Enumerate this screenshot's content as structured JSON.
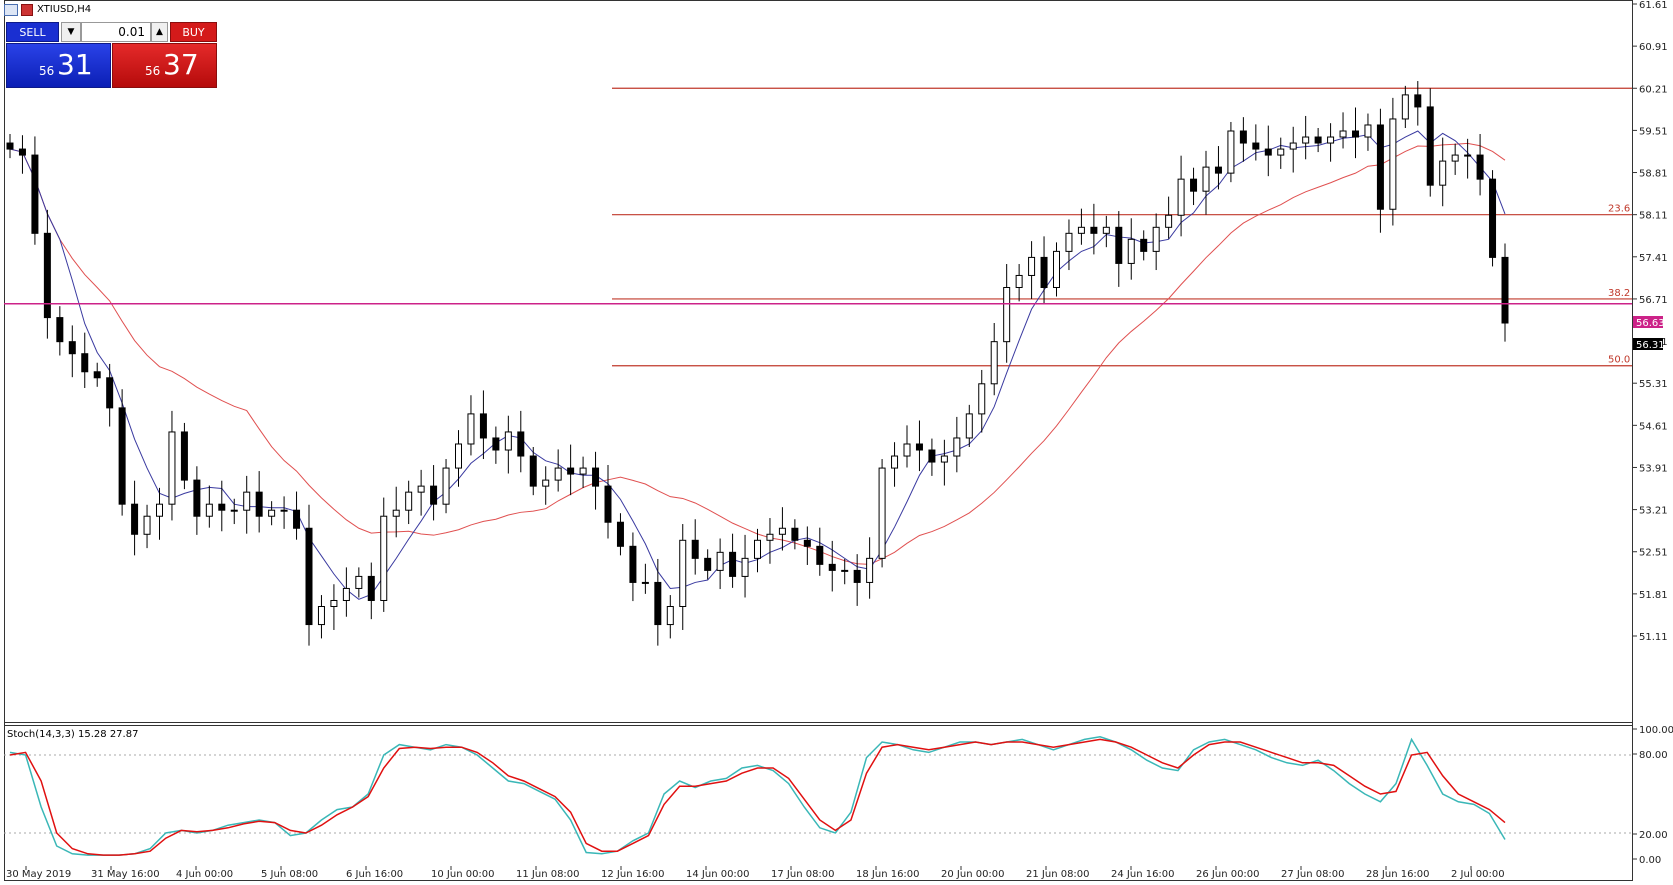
{
  "symbol_title": "XTIUSD,H4",
  "trade_panel": {
    "sell_label": "SELL",
    "buy_label": "BUY",
    "lot_value": "0.01",
    "sell_price_small": "56",
    "sell_price_big": "31",
    "buy_price_small": "56",
    "buy_price_big": "37"
  },
  "indicator_label": "Stoch(14,3,3) 15.28 27.87",
  "current_price_label": "56.31",
  "hline_price_label": "56.63",
  "colors": {
    "sell": "#1a2fd1",
    "buy": "#d41a1a",
    "ma_fast": "#3a3aa0",
    "ma_slow": "#e05050",
    "hline": "#cc2288",
    "fib": "#c0392b",
    "stoch_main": "#3ab7b7",
    "stoch_signal": "#e01010"
  },
  "chart_data": {
    "type": "candlestick",
    "title": "",
    "y_axis_ticks": [
      "61.61",
      "60.91",
      "60.21",
      "59.51",
      "58.81",
      "58.11",
      "57.41",
      "56.71",
      "56.01",
      "55.31",
      "54.61",
      "53.91",
      "53.21",
      "52.51",
      "51.81",
      "51.11"
    ],
    "ylim": [
      50.5,
      61.61
    ],
    "x_axis_ticks": [
      "30 May 2019",
      "31 May 16:00",
      "4 Jun 00:00",
      "5 Jun 08:00",
      "6 Jun 16:00",
      "10 Jun 00:00",
      "11 Jun 08:00",
      "12 Jun 16:00",
      "14 Jun 00:00",
      "17 Jun 08:00",
      "18 Jun 16:00",
      "20 Jun 00:00",
      "21 Jun 08:00",
      "24 Jun 16:00",
      "26 Jun 00:00",
      "27 Jun 08:00",
      "28 Jun 16:00",
      "2 Jul 00:00"
    ],
    "fib_levels": [
      {
        "label": "",
        "price": 60.21
      },
      {
        "label": "23.6",
        "price": 58.11
      },
      {
        "label": "38.2",
        "price": 56.71
      },
      {
        "label": "50.0",
        "price": 55.6
      }
    ],
    "hline": 56.63,
    "current_price": 56.31,
    "closes": [
      59.2,
      59.1,
      57.8,
      56.4,
      56.0,
      55.8,
      55.5,
      55.4,
      54.9,
      53.3,
      52.8,
      53.1,
      53.3,
      54.5,
      53.7,
      53.1,
      53.3,
      53.2,
      53.2,
      53.5,
      53.1,
      53.2,
      53.2,
      52.9,
      51.3,
      51.6,
      51.7,
      51.9,
      52.1,
      51.7,
      53.1,
      53.2,
      53.5,
      53.6,
      53.3,
      53.9,
      54.3,
      54.8,
      54.4,
      54.2,
      54.5,
      54.1,
      53.6,
      53.7,
      53.9,
      53.8,
      53.9,
      53.6,
      53.0,
      52.6,
      52.0,
      52.0,
      51.3,
      51.6,
      52.7,
      52.4,
      52.2,
      52.5,
      52.1,
      52.4,
      52.7,
      52.8,
      52.9,
      52.7,
      52.6,
      52.3,
      52.2,
      52.2,
      52.0,
      52.4,
      53.9,
      54.1,
      54.3,
      54.2,
      54.0,
      54.1,
      54.4,
      54.8,
      55.3,
      56.0,
      56.9,
      57.1,
      57.4,
      56.9,
      57.5,
      57.8,
      57.9,
      57.8,
      57.9,
      57.3,
      57.7,
      57.5,
      57.9,
      58.1,
      58.7,
      58.5,
      58.9,
      58.8,
      59.5,
      59.3,
      59.2,
      59.1,
      59.2,
      59.3,
      59.4,
      59.3,
      59.4,
      59.5,
      59.4,
      59.6,
      58.2,
      59.7,
      60.1,
      59.9,
      58.6,
      59.0,
      59.1,
      59.1,
      58.7,
      57.4,
      56.31
    ],
    "stoch_main": [
      82,
      80,
      40,
      10,
      4,
      3,
      3,
      3,
      4,
      8,
      20,
      22,
      20,
      22,
      26,
      28,
      30,
      28,
      18,
      20,
      30,
      38,
      40,
      50,
      80,
      88,
      86,
      84,
      88,
      86,
      80,
      70,
      60,
      58,
      52,
      46,
      30,
      5,
      4,
      6,
      14,
      20,
      50,
      60,
      55,
      60,
      62,
      70,
      72,
      68,
      58,
      40,
      24,
      20,
      36,
      78,
      90,
      88,
      84,
      82,
      86,
      90,
      90,
      88,
      90,
      92,
      88,
      84,
      88,
      92,
      94,
      90,
      84,
      76,
      70,
      68,
      84,
      90,
      92,
      88,
      84,
      78,
      74,
      72,
      76,
      68,
      58,
      50,
      44,
      58,
      92,
      72,
      50,
      44,
      42,
      35,
      15
    ],
    "stoch_signal": [
      80,
      82,
      60,
      20,
      8,
      4,
      3,
      3,
      4,
      6,
      16,
      22,
      21,
      22,
      24,
      27,
      29,
      28,
      22,
      20,
      26,
      34,
      40,
      48,
      70,
      85,
      86,
      85,
      86,
      86,
      82,
      74,
      64,
      60,
      54,
      48,
      36,
      12,
      6,
      6,
      12,
      18,
      42,
      56,
      56,
      58,
      60,
      66,
      70,
      70,
      62,
      46,
      30,
      22,
      30,
      66,
      86,
      88,
      86,
      84,
      86,
      88,
      90,
      88,
      90,
      90,
      88,
      86,
      88,
      90,
      92,
      90,
      86,
      80,
      74,
      70,
      80,
      88,
      90,
      90,
      86,
      82,
      78,
      74,
      74,
      72,
      64,
      56,
      50,
      52,
      80,
      82,
      64,
      50,
      44,
      38,
      28
    ]
  }
}
